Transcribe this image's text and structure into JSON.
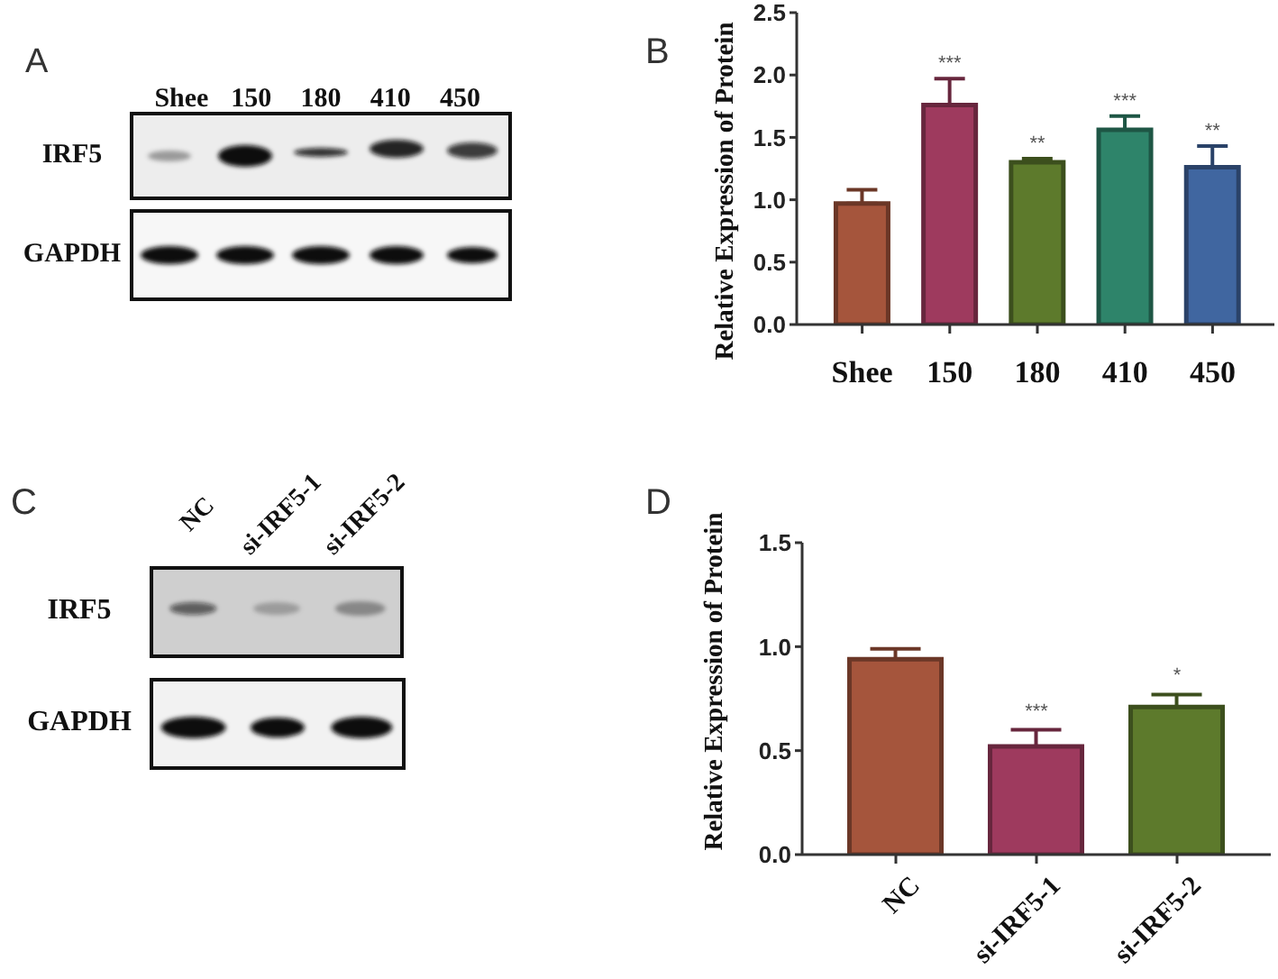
{
  "chart_data": [
    {
      "type": "other",
      "title": "A",
      "categories": [
        "Shee",
        "150",
        "180",
        "410",
        "450"
      ],
      "y_categories": [
        "IRF5",
        "GAPDH"
      ]
    },
    {
      "type": "bar",
      "title": "B",
      "ylabel": "Relative Expression of Protein",
      "categories": [
        "Shee",
        "150",
        "180",
        "410",
        "450"
      ],
      "values": [
        0.97,
        1.76,
        1.3,
        1.56,
        1.26
      ],
      "errors": [
        0.11,
        0.21,
        0.03,
        0.11,
        0.17
      ],
      "colors": [
        "#a5553c",
        "#9e3a5e",
        "#5d7a2c",
        "#2e846a",
        "#4066a0"
      ],
      "ylim": [
        0,
        2.5
      ],
      "yticks": [
        {
          "value": 0,
          "label": "0.0"
        },
        0.5,
        {
          "value": 1,
          "label": "1.0"
        },
        1.5,
        {
          "value": 2,
          "label": "2.0"
        },
        2.5
      ],
      "annotations": [
        {
          "text": "***",
          "x": "150",
          "y": 1.76
        },
        {
          "text": "**",
          "x": "180",
          "y": 1.3
        },
        {
          "text": "***",
          "x": "410",
          "y": 1.56
        },
        {
          "text": "**",
          "x": "450",
          "y": 1.26
        }
      ]
    },
    {
      "type": "other",
      "title": "C",
      "categories": [
        "NC",
        "si-IRF5-1",
        "si-IRF5-2"
      ],
      "y_categories": [
        "IRF5",
        "GAPDH"
      ]
    },
    {
      "type": "bar",
      "title": "D",
      "ylabel": "Relative Expression of Protein",
      "categories": [
        "NC",
        "si-IRF5-1",
        "si-IRF5-2"
      ],
      "values": [
        0.94,
        0.52,
        0.71
      ],
      "errors": [
        0.05,
        0.08,
        0.06
      ],
      "colors": [
        "#a5553c",
        "#9e3a5e",
        "#5d7a2c"
      ],
      "ylim": [
        0,
        1.5
      ],
      "yticks": [
        {
          "value": 0,
          "label": "0.0"
        },
        0.5,
        {
          "value": 1,
          "label": "1.0"
        },
        1.5
      ],
      "annotations": [
        {
          "text": "***",
          "x": "si-IRF5-1",
          "y": 0.52
        },
        {
          "text": "*",
          "x": "si-IRF5-2",
          "y": 0.71
        }
      ]
    }
  ]
}
